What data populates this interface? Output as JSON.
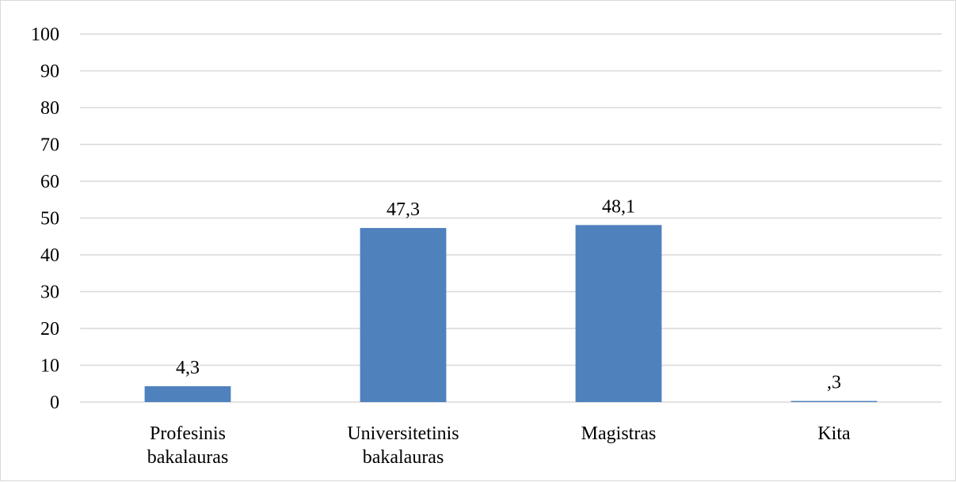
{
  "chart_data": {
    "type": "bar",
    "categories": [
      [
        "Profesinis",
        "bakalauras"
      ],
      [
        "Universitetinis",
        "bakalauras"
      ],
      [
        "Magistras"
      ],
      [
        "Kita"
      ]
    ],
    "values": [
      4.3,
      47.3,
      48.1,
      0.3
    ],
    "data_labels": [
      "4,3",
      "47,3",
      "48,1",
      ",3"
    ],
    "ylim": [
      0,
      100
    ],
    "yticks": [
      "0",
      "10",
      "20",
      "30",
      "40",
      "50",
      "60",
      "70",
      "80",
      "90",
      "100"
    ],
    "grid": true,
    "legend": "none",
    "colors": {
      "bar": "#4f81bd",
      "grid": "#d9d9d9",
      "frame": "#d9d9d9"
    }
  }
}
